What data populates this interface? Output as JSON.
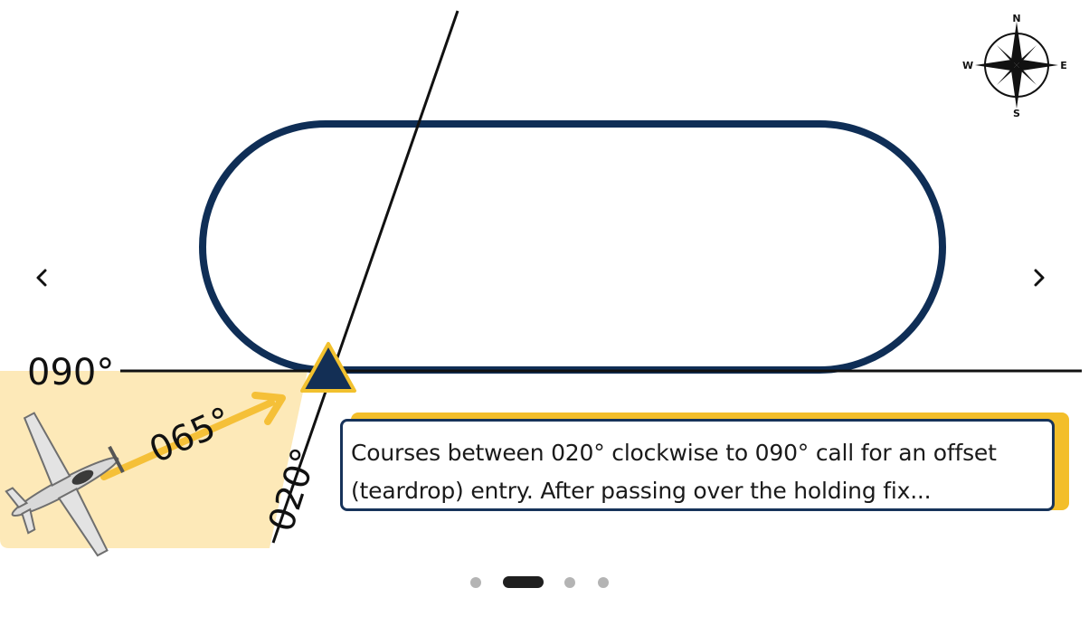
{
  "diagram": {
    "heading_labels": {
      "inbound": "090°",
      "aircraft_course": "065°",
      "boundary": "020°"
    },
    "compass": {
      "n": "N",
      "s": "S",
      "e": "E",
      "w": "W"
    },
    "colors": {
      "track": "#0f2e56",
      "fix_marker": "#132f55",
      "fix_outline": "#f2c12e",
      "sector_fill": "#fde9b8",
      "arrow": "#f5c038",
      "line": "#111111"
    }
  },
  "caption": {
    "text": "Courses between 020° clockwise to 090° call for an offset (teardrop) entry. After passing over the holding fix..."
  },
  "carousel": {
    "prev_icon": "chevron-left-icon",
    "next_icon": "chevron-right-icon",
    "slide_count": 4,
    "active_index": 1
  }
}
